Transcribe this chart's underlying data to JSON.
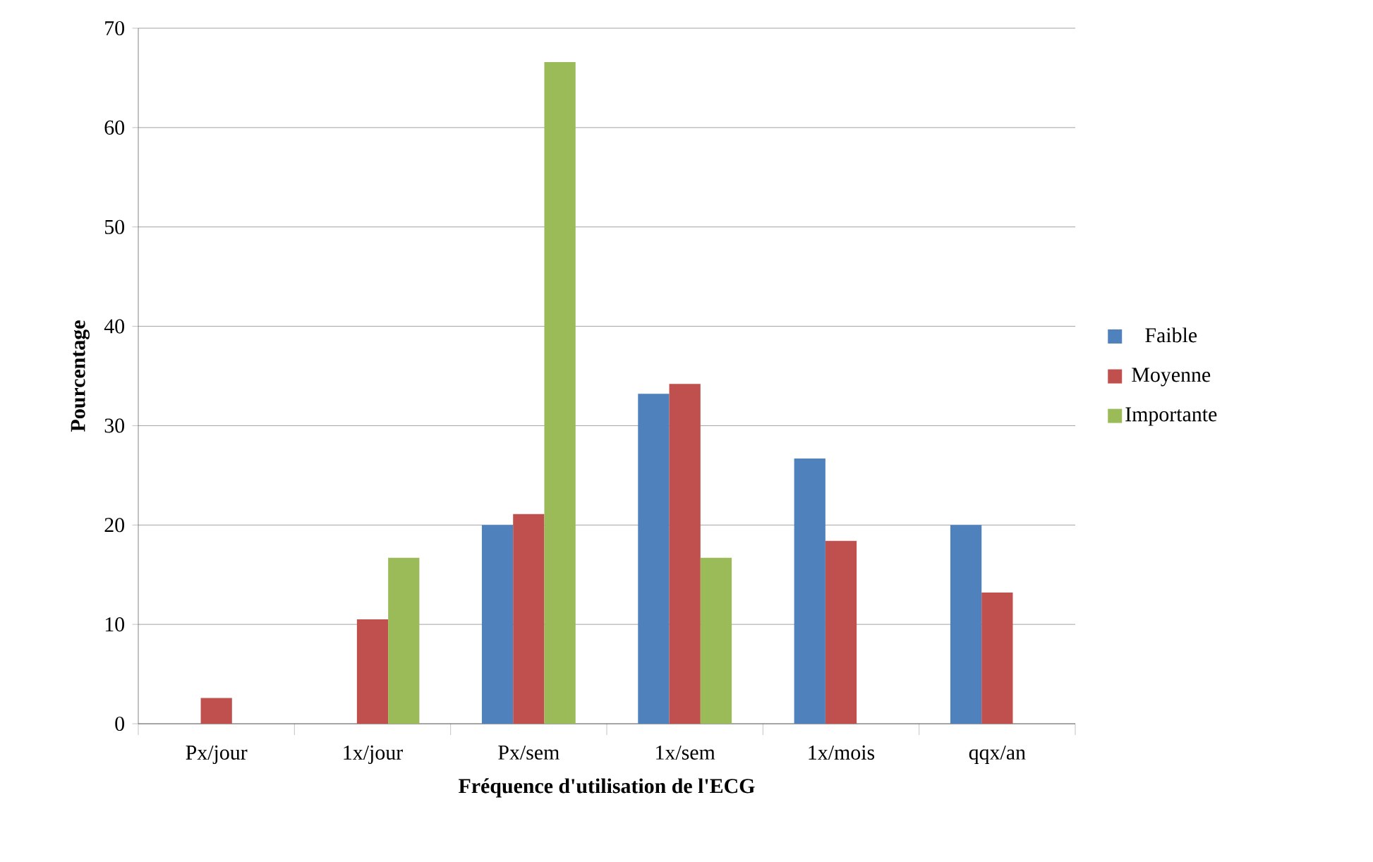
{
  "chart_data": {
    "type": "bar",
    "xlabel": "Fréquence d'utilisation de l'ECG",
    "ylabel": "Pourcentage",
    "categories": [
      "Px/jour",
      "1x/jour",
      "Px/sem",
      "1x/sem",
      "1x/mois",
      "qqx/an"
    ],
    "series": [
      {
        "name": "Faible",
        "color": "#4f81bd",
        "values": [
          0,
          0,
          20,
          33.2,
          26.7,
          20
        ]
      },
      {
        "name": "Moyenne",
        "color": "#c0504d",
        "values": [
          2.6,
          10.5,
          21.1,
          34.2,
          18.4,
          13.2
        ]
      },
      {
        "name": "Importante",
        "color": "#9bbb59",
        "values": [
          0,
          16.7,
          66.6,
          16.7,
          0,
          0
        ]
      }
    ],
    "ylim": [
      0,
      70
    ],
    "yticks": [
      0,
      10,
      20,
      30,
      40,
      50,
      60,
      70
    ],
    "grid": "y",
    "legend": "right"
  }
}
